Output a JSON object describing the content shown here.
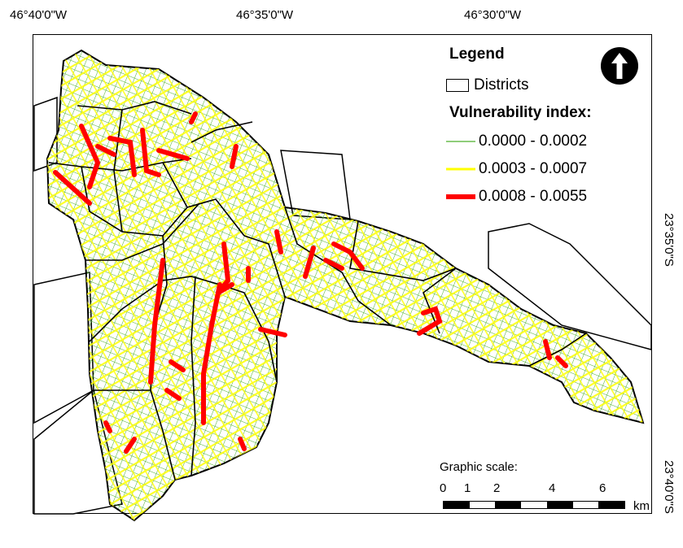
{
  "map": {
    "axes": {
      "top_ticks": [
        "46°40'0\"W",
        "46°35'0\"W",
        "46°30'0\"W"
      ],
      "right_ticks": [
        "23°35'0\"S",
        "23°40'0\"S"
      ]
    },
    "legend": {
      "title": "Legend",
      "districts_label": "Districts",
      "vulnerability_title": "Vulnerability index:",
      "classes": [
        {
          "label": "0.0000 - 0.0002",
          "color": "#4caf2a",
          "weight": "thin"
        },
        {
          "label": "0.0003 - 0.0007",
          "color": "#ffff00",
          "weight": "medium"
        },
        {
          "label": "0.0008 - 0.0055",
          "color": "#ff0000",
          "weight": "thick"
        }
      ]
    },
    "north_arrow": {
      "icon": "north-arrow-icon"
    },
    "scale": {
      "title": "Graphic scale:",
      "labels": [
        "0",
        "1",
        "2",
        "4",
        "6"
      ],
      "unit": "km"
    },
    "colors": {
      "low": "#4caf2a",
      "medium": "#ffff00",
      "high": "#ff0000",
      "district_border": "#000000",
      "outline_fill": "#ffffff"
    }
  }
}
